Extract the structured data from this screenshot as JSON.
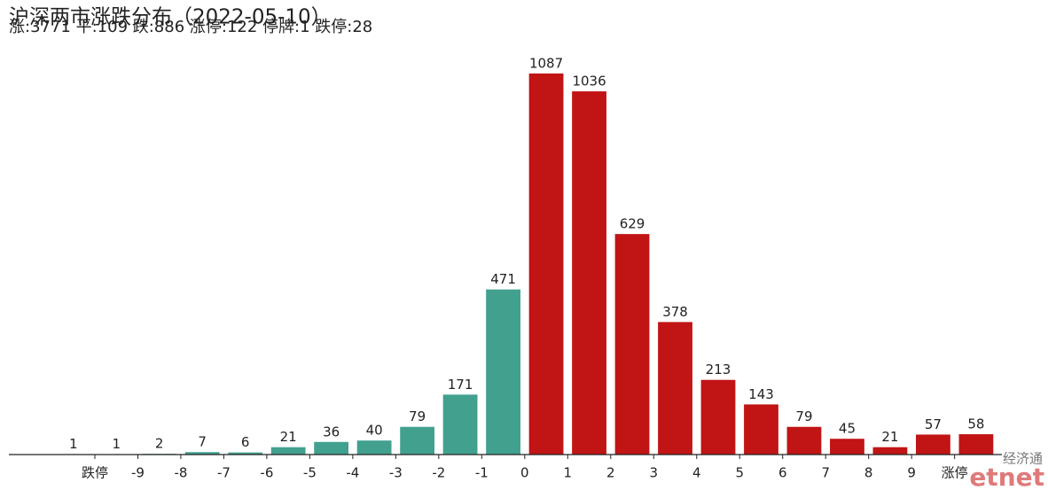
{
  "chart_data": {
    "type": "bar",
    "title": "沪深两市涨跌分布（2022-05-10）",
    "subtitle": "涨:3771 平:109 跌:886 涨停:122 停牌:1 跌停:28",
    "x": [
      -10.5,
      -9.5,
      -8.5,
      -7.5,
      -6.5,
      -5.5,
      -4.5,
      -3.5,
      -2.5,
      -1.5,
      -0.5,
      0.5,
      1.5,
      2.5,
      3.5,
      4.5,
      5.5,
      6.5,
      7.5,
      8.5,
      9.5,
      10.5
    ],
    "values": [
      1,
      1,
      2,
      7,
      6,
      21,
      36,
      40,
      79,
      171,
      471,
      1087,
      1036,
      629,
      378,
      213,
      143,
      79,
      45,
      21,
      57,
      58
    ],
    "colors": [
      "#42a08e",
      "#42a08e",
      "#42a08e",
      "#42a08e",
      "#42a08e",
      "#42a08e",
      "#42a08e",
      "#42a08e",
      "#42a08e",
      "#42a08e",
      "#42a08e",
      "#c11414",
      "#c11414",
      "#c11414",
      "#c11414",
      "#c11414",
      "#c11414",
      "#c11414",
      "#c11414",
      "#c11414",
      "#c11414",
      "#c11414"
    ],
    "xlim": [
      -12,
      11.1
    ],
    "xticks": [
      {
        "value": -10,
        "label": "跌停"
      },
      -9,
      -8,
      -7,
      -6,
      -5,
      -4,
      -3,
      -2,
      -1,
      0,
      1,
      2,
      3,
      4,
      5,
      6,
      7,
      8,
      9,
      {
        "value": 10,
        "label": "涨停"
      }
    ],
    "ylim": [
      0,
      1150
    ],
    "watermark": {
      "top": "经济通",
      "bottom": "etnet"
    }
  }
}
